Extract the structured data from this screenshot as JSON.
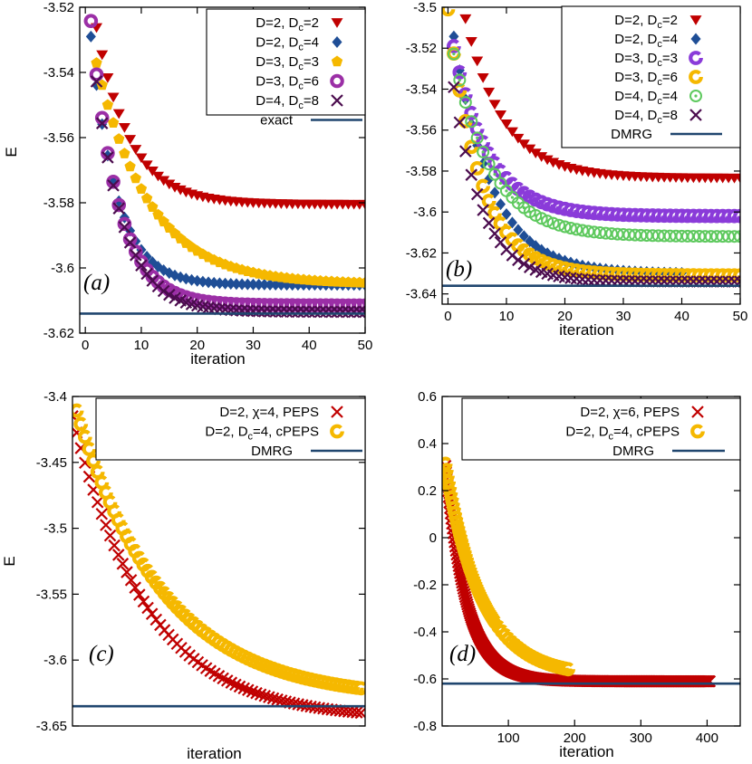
{
  "colors": {
    "red": "#c00000",
    "blue": "#1f4e96",
    "gold": "#f5b800",
    "purple": "#9b2fa6",
    "violet": "#8a3bd9",
    "green": "#5ec95e",
    "darkpurple": "#4b0c4e",
    "navy": "#20466f"
  },
  "chart_data": [
    {
      "id": "a",
      "type": "scatter",
      "panel_label": "(a)",
      "xlabel": "iteration",
      "ylabel": "E",
      "xlim": [
        -1,
        50
      ],
      "ylim": [
        -3.62,
        -3.52
      ],
      "xticks": [
        "0",
        "10",
        "20",
        "30",
        "40",
        "50"
      ],
      "yticks": [
        "-3.52",
        "-3.54",
        "-3.56",
        "-3.58",
        "-3.6",
        "-3.62"
      ],
      "legend_position": "top-right",
      "series": [
        {
          "name": "D=2, D",
          "sub": "c",
          "tail": "=2",
          "marker": "triangle",
          "color": "red",
          "start_x": 2,
          "count": 49,
          "y0": -3.5048,
          "asym": -3.5805,
          "tau": 6.0
        },
        {
          "name": "D=2, D",
          "sub": "c",
          "tail": "=4",
          "marker": "diamond",
          "color": "blue",
          "start_x": 1,
          "count": 50,
          "y0": -3.5105,
          "asym": -3.6052,
          "tau": 4.6
        },
        {
          "name": "D=3, D",
          "sub": "c",
          "tail": "=3",
          "marker": "pentagon",
          "color": "gold",
          "start_x": 2,
          "count": 49,
          "y0": -3.5212,
          "asym": -3.605,
          "tau": 9.5
        },
        {
          "name": "D=3, D",
          "sub": "c",
          "tail": "=6",
          "marker": "ring",
          "color": "purple",
          "start_x": 1,
          "count": 50,
          "y0": -3.504,
          "asym": -3.6115,
          "tau": 4.8
        },
        {
          "name": "D=4, D",
          "sub": "c",
          "tail": "=8",
          "marker": "x",
          "color": "darkpurple",
          "start_x": 2,
          "count": 49,
          "y0": -3.508,
          "asym": -3.6135,
          "tau": 5.0
        },
        {
          "name": "exact",
          "sub": "",
          "tail": "",
          "marker": "line",
          "color": "navy",
          "y": -3.614
        }
      ]
    },
    {
      "id": "b",
      "type": "scatter",
      "panel_label": "(b)",
      "xlabel": "iteration",
      "ylabel": "",
      "xlim": [
        -1,
        50
      ],
      "ylim": [
        -3.645,
        -3.5
      ],
      "xticks": [
        "0",
        "10",
        "20",
        "30",
        "40",
        "50"
      ],
      "yticks": [
        "-3.5",
        "-3.52",
        "-3.54",
        "-3.56",
        "-3.58",
        "-3.6",
        "-3.62",
        "-3.64"
      ],
      "legend_position": "top-right",
      "series": [
        {
          "name": "D=2, D",
          "sub": "c",
          "tail": "=2",
          "marker": "triangle",
          "color": "red",
          "start_x": 2,
          "count": 49,
          "y0": -3.46,
          "asym": -3.5835,
          "tau": 6.5
        },
        {
          "name": "D=2, D",
          "sub": "c",
          "tail": "=4",
          "marker": "diamond",
          "color": "blue",
          "start_x": 1,
          "count": 40,
          "y0": -3.495,
          "asym": -3.63,
          "tau": 6.5
        },
        {
          "name": "D=3, D",
          "sub": "c",
          "tail": "=3",
          "marker": "cring",
          "color": "violet",
          "start_x": 1,
          "count": 50,
          "y0": -3.504,
          "asym": -3.602,
          "tau": 6.0
        },
        {
          "name": "D=3, D",
          "sub": "c",
          "tail": "=6",
          "marker": "cring",
          "color": "gold",
          "start_x": 0,
          "count": 51,
          "y0": -3.501,
          "asym": -3.631,
          "tau": 5.5
        },
        {
          "name": "D=4, D",
          "sub": "c",
          "tail": "=4",
          "marker": "dotring",
          "color": "green",
          "start_x": 1,
          "count": 50,
          "y0": -3.508,
          "asym": -3.612,
          "tau": 6.5
        },
        {
          "name": "D=4, D",
          "sub": "c",
          "tail": "=8",
          "marker": "x",
          "color": "darkpurple",
          "start_x": 1,
          "count": 50,
          "y0": -3.518,
          "asym": -3.634,
          "tau": 5.0
        },
        {
          "name": "DMRG",
          "sub": "",
          "tail": "",
          "marker": "line",
          "color": "navy",
          "y": -3.636
        }
      ]
    },
    {
      "id": "c",
      "type": "scatter",
      "panel_label": "(c)",
      "xlabel": "iteration",
      "ylabel": "E",
      "xlim": [
        0,
        70
      ],
      "ylim": [
        -3.65,
        -3.4
      ],
      "xticks": [],
      "yticks": [
        "-3.4",
        "-3.45",
        "-3.5",
        "-3.55",
        "-3.6",
        "-3.65"
      ],
      "legend_position": "top-right",
      "series": [
        {
          "name": "D=2, χ=4,  PEPS",
          "sub": "",
          "tail": "",
          "marker": "x",
          "color": "red",
          "start_x": 0,
          "count": 70,
          "y0": -3.415,
          "asym": -3.645,
          "tau": 18.0
        },
        {
          "name": "D=2, D",
          "sub": "c",
          "tail": "=4, cPEPS",
          "marker": "cring",
          "color": "gold",
          "start_x": 1,
          "count": 69,
          "y0": -3.4,
          "asym": -3.63,
          "tau": 21.0
        },
        {
          "name": "DMRG",
          "sub": "",
          "tail": "",
          "marker": "line",
          "color": "navy",
          "y": -3.635
        }
      ]
    },
    {
      "id": "d",
      "type": "scatter",
      "panel_label": "(d)",
      "xlabel": "iteration",
      "ylabel": "",
      "xlim": [
        0,
        450
      ],
      "ylim": [
        -0.8,
        0.6
      ],
      "xticks": [
        "100",
        "200",
        "300",
        "400"
      ],
      "yticks": [
        "0.6",
        "0.4",
        "0.2",
        "0",
        "-0.2",
        "-0.4",
        "-0.6",
        "-0.8"
      ],
      "legend_position": "top-right",
      "series": [
        {
          "name": "D=2, χ=6,  PEPS",
          "sub": "",
          "tail": "",
          "marker": "x",
          "color": "red",
          "start_x": 5,
          "count": 400,
          "y0": 0.46,
          "asym": -0.61,
          "tau": 32.0,
          "step": 1
        },
        {
          "name": "D=2, D",
          "sub": "c",
          "tail": "=4, cPEPS",
          "marker": "cring",
          "color": "gold",
          "start_x": 5,
          "count": 70,
          "y0": 0.4,
          "asym": -0.59,
          "tau": 55.0,
          "step": 5,
          "dense_until": 80
        },
        {
          "name": "DMRG",
          "sub": "",
          "tail": "",
          "marker": "line",
          "color": "navy",
          "y": -0.62
        }
      ]
    }
  ]
}
